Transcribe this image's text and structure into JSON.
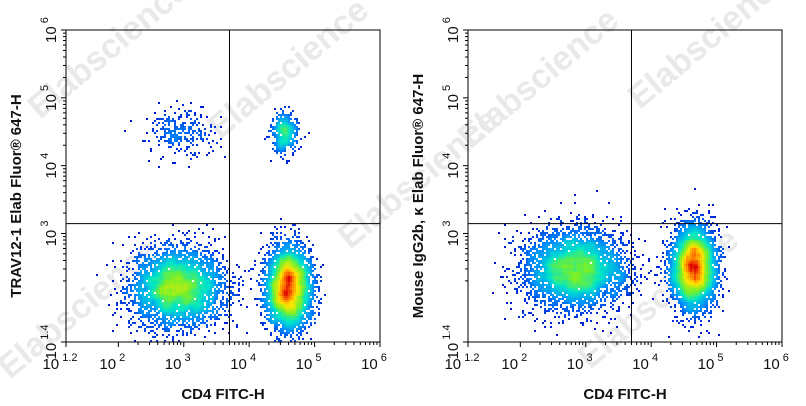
{
  "watermark": "Elabscience",
  "chart_data": [
    {
      "type": "scatter",
      "subtype": "flow-cytometry-density",
      "xlabel": "CD4 FITC-H",
      "ylabel": "TRAV12-1 Elab Fluor® 647-H",
      "x_scale": "log",
      "y_scale": "log",
      "xlim": [
        15.85,
        1000000
      ],
      "ylim": [
        25.12,
        1000000
      ],
      "x_ticks": [
        {
          "base": "10",
          "exp": "1.2"
        },
        {
          "base": "10",
          "exp": "2"
        },
        {
          "base": "10",
          "exp": "3"
        },
        {
          "base": "10",
          "exp": "4"
        },
        {
          "base": "10",
          "exp": "5"
        },
        {
          "base": "10",
          "exp": "6"
        }
      ],
      "y_ticks": [
        {
          "base": "10",
          "exp": "1.4"
        },
        {
          "base": "10",
          "exp": "3"
        },
        {
          "base": "10",
          "exp": "4"
        },
        {
          "base": "10",
          "exp": "5"
        },
        {
          "base": "10",
          "exp": "6"
        }
      ],
      "quadrant_gate": {
        "x": 5000,
        "y": 1400
      },
      "populations": [
        {
          "x_center": 800,
          "y_center": 160,
          "spread_x_decades": 0.35,
          "spread_y_decades": 0.28,
          "weight": 0.45
        },
        {
          "x_center": 40000,
          "y_center": 160,
          "spread_x_decades": 0.17,
          "spread_y_decades": 0.3,
          "weight": 0.45
        },
        {
          "x_center": 35000,
          "y_center": 30000,
          "spread_x_decades": 0.1,
          "spread_y_decades": 0.14,
          "weight": 0.05
        },
        {
          "x_center": 900,
          "y_center": 30000,
          "spread_x_decades": 0.25,
          "spread_y_decades": 0.18,
          "weight": 0.03
        }
      ]
    },
    {
      "type": "scatter",
      "subtype": "flow-cytometry-density",
      "xlabel": "CD4 FITC-H",
      "ylabel": "Mouse IgG2b, κ Elab Fluor® 647-H",
      "x_scale": "log",
      "y_scale": "log",
      "xlim": [
        15.85,
        1000000
      ],
      "ylim": [
        25.12,
        1000000
      ],
      "x_ticks": [
        {
          "base": "10",
          "exp": "1.2"
        },
        {
          "base": "10",
          "exp": "2"
        },
        {
          "base": "10",
          "exp": "3"
        },
        {
          "base": "10",
          "exp": "4"
        },
        {
          "base": "10",
          "exp": "5"
        },
        {
          "base": "10",
          "exp": "6"
        }
      ],
      "y_ticks": [
        {
          "base": "10",
          "exp": "1.4"
        },
        {
          "base": "10",
          "exp": "3"
        },
        {
          "base": "10",
          "exp": "4"
        },
        {
          "base": "10",
          "exp": "5"
        },
        {
          "base": "10",
          "exp": "6"
        }
      ],
      "quadrant_gate": {
        "x": 5000,
        "y": 1400
      },
      "populations": [
        {
          "x_center": 700,
          "y_center": 300,
          "spread_x_decades": 0.38,
          "spread_y_decades": 0.28,
          "weight": 0.5
        },
        {
          "x_center": 45000,
          "y_center": 320,
          "spread_x_decades": 0.17,
          "spread_y_decades": 0.3,
          "weight": 0.5
        }
      ]
    }
  ]
}
